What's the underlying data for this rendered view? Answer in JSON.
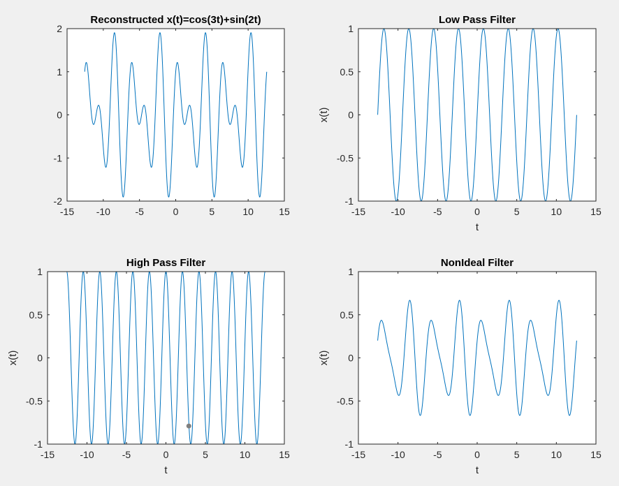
{
  "colors": {
    "line": "#0072BD",
    "axes": "#262626",
    "background": "#f0f0f0",
    "plot_area": "#ffffff",
    "marker": "#7f7f7f"
  },
  "chart_data": [
    {
      "type": "line",
      "title": "Reconstructed x(t)=cos(3t)+sin(2t)",
      "xlabel": "",
      "ylabel": "",
      "xlim": [
        -15,
        15
      ],
      "ylim": [
        -2,
        2
      ],
      "xticks": [
        -15,
        -10,
        -5,
        0,
        5,
        10,
        15
      ],
      "yticks": [
        -2,
        -1,
        0,
        1,
        2
      ],
      "xtick_labels": [
        "-15",
        "-10",
        "-5",
        "0",
        "5",
        "10",
        "15"
      ],
      "ytick_labels": [
        "-2",
        "-1",
        "0",
        "1",
        "2"
      ],
      "grid": false,
      "series": [
        {
          "function": "cos(3t)+sin(2t)",
          "t_range": [
            -12.566,
            12.566
          ]
        }
      ]
    },
    {
      "type": "line",
      "title": "Low Pass Filter",
      "xlabel": "t",
      "ylabel": "x(t)",
      "xlim": [
        -15,
        15
      ],
      "ylim": [
        -1,
        1
      ],
      "xticks": [
        -15,
        -10,
        -5,
        0,
        5,
        10,
        15
      ],
      "yticks": [
        -1,
        -0.5,
        0,
        0.5,
        1
      ],
      "xtick_labels": [
        "-15",
        "-10",
        "-5",
        "0",
        "5",
        "10",
        "15"
      ],
      "ytick_labels": [
        "-1",
        "-0.5",
        "0",
        "0.5",
        "1"
      ],
      "grid": false,
      "series": [
        {
          "function": "sin(2t)",
          "t_range": [
            -12.566,
            12.566
          ]
        }
      ]
    },
    {
      "type": "line",
      "title": "High Pass Filter",
      "xlabel": "t",
      "ylabel": "x(t)",
      "xlim": [
        -15,
        15
      ],
      "ylim": [
        -1,
        1
      ],
      "xticks": [
        -15,
        -10,
        -5,
        0,
        5,
        10,
        15
      ],
      "yticks": [
        -1,
        -0.5,
        0,
        0.5,
        1
      ],
      "xtick_labels": [
        "-15",
        "-10",
        "-5",
        "0",
        "5",
        "10",
        "15"
      ],
      "ytick_labels": [
        "-1",
        "-0.5",
        "0",
        "0.5",
        "1"
      ],
      "grid": false,
      "series": [
        {
          "function": "cos(3t)",
          "t_range": [
            -12.566,
            12.566
          ]
        }
      ],
      "points": [
        {
          "x": 2.9,
          "y": -0.79
        }
      ]
    },
    {
      "type": "line",
      "title": "NonIdeal Filter",
      "xlabel": "t",
      "ylabel": "x(t)",
      "xlim": [
        -15,
        15
      ],
      "ylim": [
        -1,
        1
      ],
      "xticks": [
        -15,
        -10,
        -5,
        0,
        5,
        10,
        15
      ],
      "yticks": [
        -1,
        -0.5,
        0,
        0.5,
        1
      ],
      "xtick_labels": [
        "-15",
        "-10",
        "-5",
        "0",
        "5",
        "10",
        "15"
      ],
      "ytick_labels": [
        "-1",
        "-0.5",
        "0",
        "0.5",
        "1"
      ],
      "grid": false,
      "series": [
        {
          "function": "0.2*cos(3t)+0.5*sin(2t)",
          "t_range": [
            -12.566,
            12.566
          ]
        }
      ]
    }
  ]
}
